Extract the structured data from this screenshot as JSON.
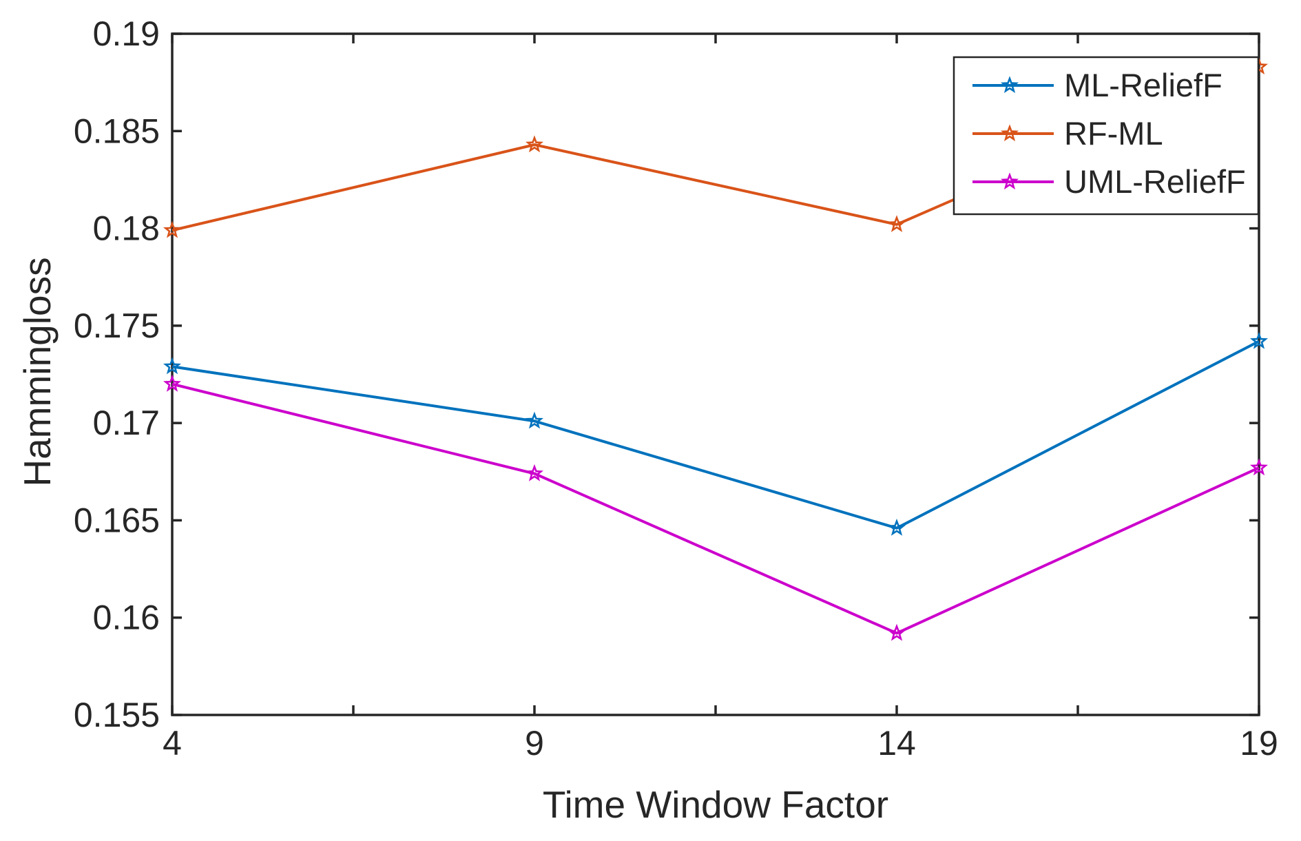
{
  "figure": {
    "background": "#ffffff",
    "axis_color": "#262626",
    "text_color": "#262626"
  },
  "chart_data": {
    "type": "line",
    "title": "",
    "xlabel": "Time Window Factor",
    "ylabel": "Hammingloss",
    "x": [
      4,
      9,
      14,
      19
    ],
    "series": [
      {
        "name": "ML-ReliefF",
        "color": "#0072BD",
        "marker": "pentagram",
        "values": [
          0.1729,
          0.1701,
          0.1646,
          0.1742
        ]
      },
      {
        "name": "RF-ML",
        "color": "#D95319",
        "marker": "pentagram",
        "values": [
          0.1799,
          0.1843,
          0.1802,
          0.1883
        ]
      },
      {
        "name": "UML-ReliefF",
        "color": "#CC00CC",
        "marker": "pentagram",
        "values": [
          0.172,
          0.1674,
          0.1592,
          0.1677
        ]
      }
    ],
    "xlim": [
      4,
      19
    ],
    "ylim": [
      0.155,
      0.19
    ],
    "x_major_ticks": [
      4,
      9,
      14,
      19
    ],
    "x_major_tick_labels": [
      "4",
      "9",
      "14",
      "19"
    ],
    "x_minor_ticks": [
      6.5,
      11.5,
      16.5
    ],
    "y_ticks": [
      0.155,
      0.16,
      0.165,
      0.17,
      0.175,
      0.18,
      0.185,
      0.19
    ],
    "y_tick_labels": [
      "0.155",
      "0.16",
      "0.165",
      "0.17",
      "0.175",
      "0.18",
      "0.185",
      "0.19"
    ],
    "grid": false,
    "box": true,
    "legend_position": "top-right",
    "legend_entries": [
      "ML-ReliefF",
      "RF-ML",
      "UML-ReliefF"
    ]
  }
}
